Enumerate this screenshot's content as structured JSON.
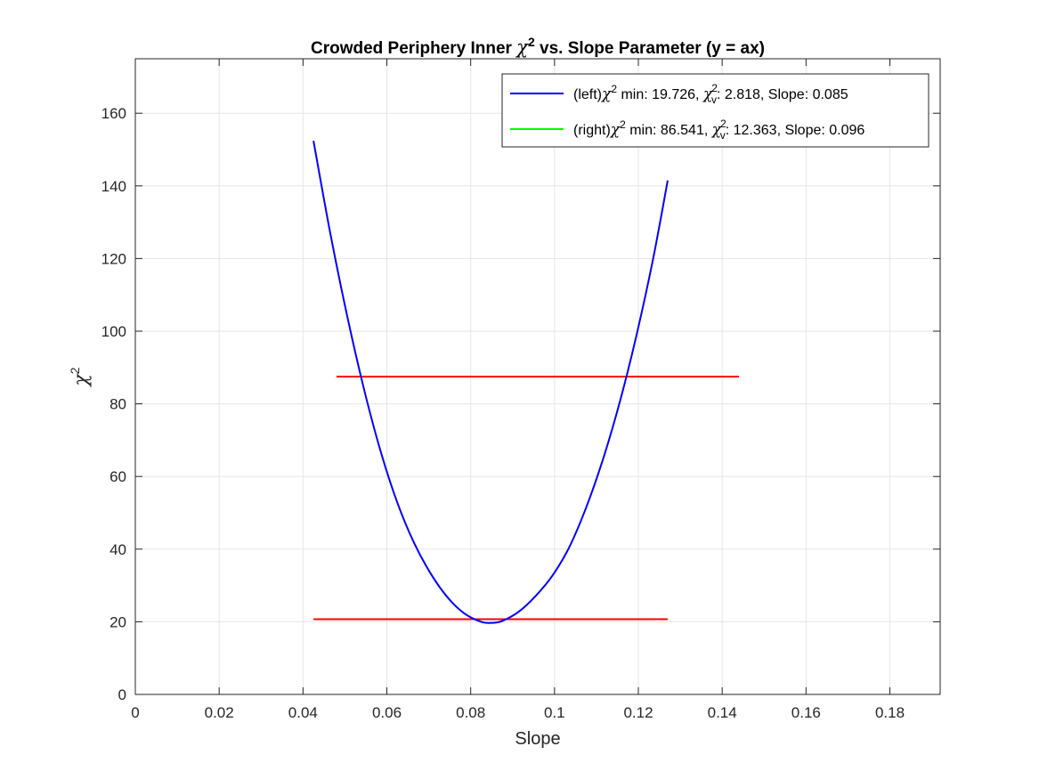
{
  "chart_data": {
    "type": "line",
    "title": {
      "prefix": "Crowded Periphery Inner ",
      "symbol": "χ",
      "exponent": "2",
      "suffix": " vs. Slope Parameter (y = ax)"
    },
    "xlabel": "Slope",
    "ylabel": {
      "symbol": "χ",
      "exponent": "2"
    },
    "xlim": [
      0,
      0.192
    ],
    "ylim": [
      0,
      175
    ],
    "xticks": [
      0,
      0.02,
      0.04,
      0.06,
      0.08,
      0.1,
      0.12,
      0.14,
      0.16,
      0.18
    ],
    "xtick_labels": [
      "0",
      "0.02",
      "0.04",
      "0.06",
      "0.08",
      "0.1",
      "0.12",
      "0.14",
      "0.16",
      "0.18"
    ],
    "yticks": [
      0,
      20,
      40,
      60,
      80,
      100,
      120,
      140,
      160
    ],
    "ytick_labels": [
      "0",
      "20",
      "40",
      "60",
      "80",
      "100",
      "120",
      "140",
      "160"
    ],
    "grid": true,
    "legend_position": "top-right",
    "series": [
      {
        "legend_prefix": "(left)",
        "legend_main": " min: 19.726, ",
        "legend_nu_sub": "v",
        "legend_tail": ": 2.818, Slope: 0.085",
        "color": "#0000ff",
        "curve": {
          "chi2_min": 19.726,
          "slope_at_min": 0.085,
          "x_range": [
            0.0425,
            0.127
          ],
          "x": [
            0.0425,
            0.0465,
            0.0505,
            0.0545,
            0.0585,
            0.0625,
            0.0665,
            0.0705,
            0.0745,
            0.0785,
            0.0825,
            0.085,
            0.0875,
            0.0915,
            0.0955,
            0.0995,
            0.1035,
            0.1075,
            0.1115,
            0.1155,
            0.1195,
            0.1235,
            0.127
          ],
          "y": [
            152.4,
            127.0,
            104.4,
            84.3,
            67.0,
            52.8,
            41.7,
            33.2,
            26.7,
            22.3,
            20.0,
            19.7,
            20.2,
            22.8,
            27.1,
            32.7,
            40.5,
            51.3,
            64.5,
            80.2,
            98.6,
            119.8,
            141.5
          ]
        }
      },
      {
        "legend_prefix": "(right)",
        "legend_main": " min: 86.541, ",
        "legend_nu_sub": "v",
        "legend_tail": ": 12.363, Slope: 0.096",
        "color": "#00ff00"
      }
    ],
    "horizontal_lines": [
      {
        "y": 87.5,
        "x": [
          0.048,
          0.144
        ],
        "color": "#ff0000"
      },
      {
        "y": 20.7,
        "x": [
          0.0425,
          0.127
        ],
        "color": "#ff0000"
      }
    ]
  }
}
